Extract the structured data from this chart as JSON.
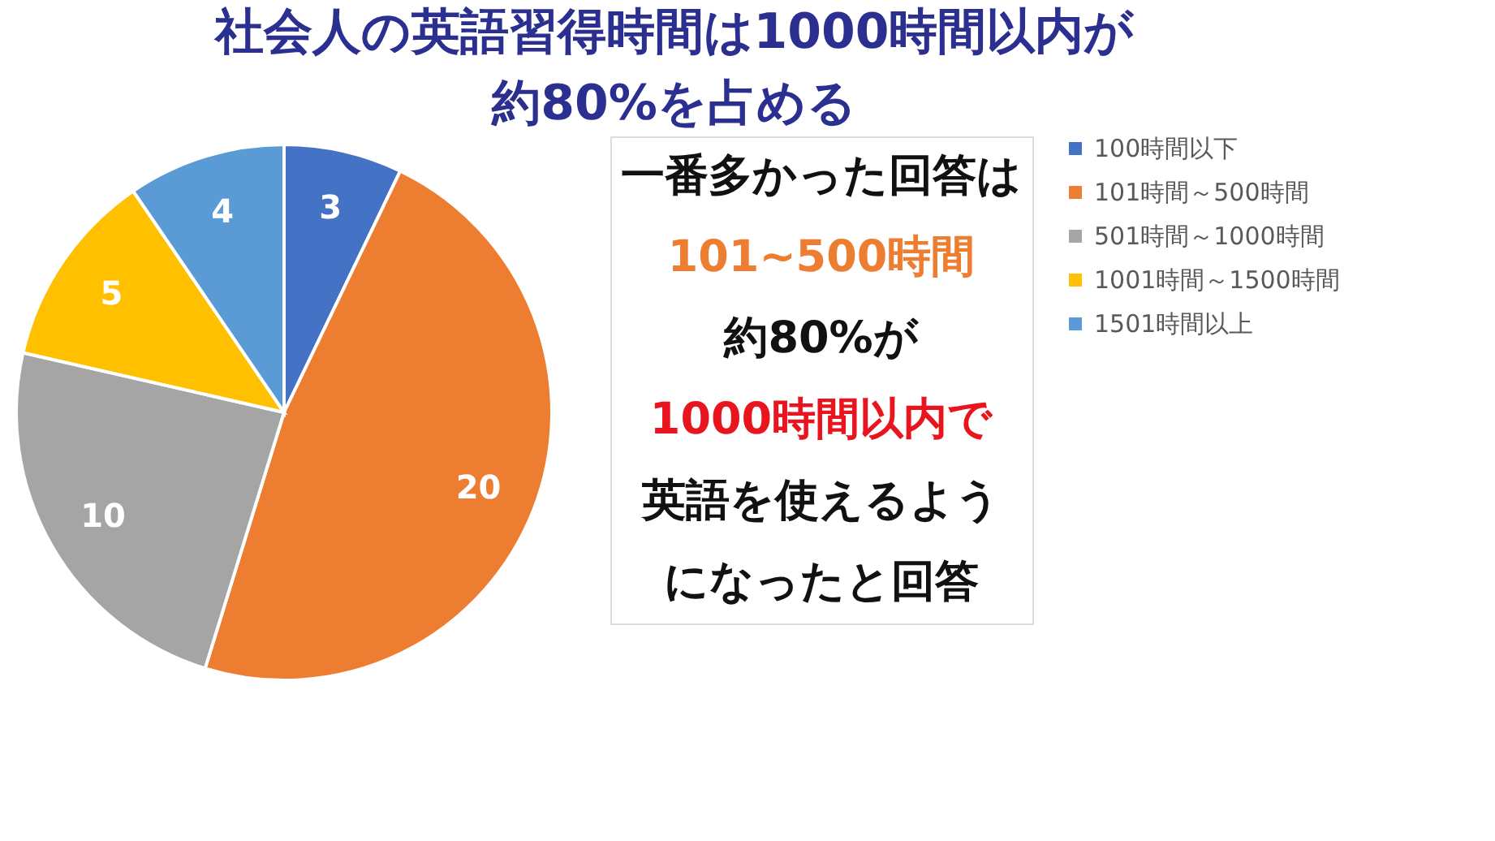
{
  "chart_data": {
    "type": "pie",
    "title": [
      "社会人の英語習得時間は1000時間以内が",
      "約80%を占める"
    ],
    "categories": [
      "100時間以下",
      "101時間～500時間",
      "501時間～1000時間",
      "1001時間～1500時間",
      "1501時間以上"
    ],
    "values": [
      3,
      20,
      10,
      5,
      4
    ],
    "colors": [
      "#4472c4",
      "#ed7d31",
      "#a5a5a5",
      "#ffc000",
      "#5b9bd5"
    ],
    "data_labels": true,
    "legend": "right",
    "annotations": [
      "一番多かった回答は",
      "101~500時間",
      "約80%が",
      "1000時間以内で",
      "英語を使えるよう",
      "になったと回答"
    ]
  }
}
